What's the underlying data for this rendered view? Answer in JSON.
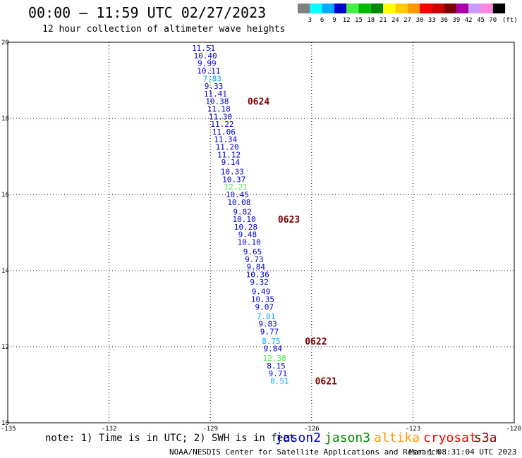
{
  "header": {
    "title": "00:00 – 11:59 UTC 02/27/2023",
    "subtitle": "12 hour collection of altimeter wave heights"
  },
  "legend": {
    "unit": "(ft)",
    "bins": [
      {
        "label": "3",
        "color": "#808080"
      },
      {
        "label": "6",
        "color": "#00ffff"
      },
      {
        "label": "9",
        "color": "#00aaff"
      },
      {
        "label": "12",
        "color": "#0000cc"
      },
      {
        "label": "15",
        "color": "#44ee44"
      },
      {
        "label": "18",
        "color": "#00bb00"
      },
      {
        "label": "21",
        "color": "#008800"
      },
      {
        "label": "24",
        "color": "#ffff00"
      },
      {
        "label": "27",
        "color": "#ffcc00"
      },
      {
        "label": "30",
        "color": "#ff9900"
      },
      {
        "label": "33",
        "color": "#ff0000"
      },
      {
        "label": "36",
        "color": "#cc0000"
      },
      {
        "label": "39",
        "color": "#7a0000"
      },
      {
        "label": "42",
        "color": "#aa00aa"
      },
      {
        "label": "45",
        "color": "#cc99ff"
      },
      {
        "label": "70",
        "color": "#ff88dd"
      },
      {
        "label": "",
        "color": "#000000"
      }
    ]
  },
  "chart_data": {
    "type": "scatter",
    "title": "00:00 – 11:59 UTC 02/27/2023",
    "subtitle": "12 hour collection of altimeter wave heights",
    "xlim": [
      -135,
      -120
    ],
    "ylim": [
      10,
      20
    ],
    "x_ticks": [
      "-135",
      "-132",
      "-129",
      "-126",
      "-123",
      "-120"
    ],
    "y_ticks": [
      "10",
      "12",
      "14",
      "16",
      "18",
      "20"
    ],
    "grid": true,
    "point_colors": {
      "blue": "#0000cc",
      "cyan": "#00aaff",
      "green": "#44ee44"
    },
    "points": [
      {
        "lon": -129.2,
        "lat": 19.85,
        "value": "11.51",
        "color": "blue"
      },
      {
        "lon": -129.15,
        "lat": 19.65,
        "value": "10.40",
        "color": "blue"
      },
      {
        "lon": -129.1,
        "lat": 19.45,
        "value": "9.99",
        "color": "blue"
      },
      {
        "lon": -129.05,
        "lat": 19.25,
        "value": "10.11",
        "color": "blue"
      },
      {
        "lon": -128.95,
        "lat": 19.05,
        "value": "7.83",
        "color": "cyan"
      },
      {
        "lon": -128.9,
        "lat": 18.85,
        "value": "9.33",
        "color": "blue"
      },
      {
        "lon": -128.85,
        "lat": 18.65,
        "value": "11.41",
        "color": "blue"
      },
      {
        "lon": -128.8,
        "lat": 18.45,
        "value": "10.38",
        "color": "blue"
      },
      {
        "lon": -128.75,
        "lat": 18.25,
        "value": "11.18",
        "color": "blue"
      },
      {
        "lon": -128.7,
        "lat": 18.05,
        "value": "11.30",
        "color": "blue"
      },
      {
        "lon": -128.65,
        "lat": 17.85,
        "value": "11.22",
        "color": "blue"
      },
      {
        "lon": -128.6,
        "lat": 17.65,
        "value": "11.06",
        "color": "blue"
      },
      {
        "lon": -128.55,
        "lat": 17.45,
        "value": "11.34",
        "color": "blue"
      },
      {
        "lon": -128.5,
        "lat": 17.25,
        "value": "11.20",
        "color": "blue"
      },
      {
        "lon": -128.45,
        "lat": 17.05,
        "value": "11.12",
        "color": "blue"
      },
      {
        "lon": -128.4,
        "lat": 16.85,
        "value": "9.14",
        "color": "blue"
      },
      {
        "lon": -128.35,
        "lat": 16.6,
        "value": "10.33",
        "color": "blue"
      },
      {
        "lon": -128.3,
        "lat": 16.4,
        "value": "10.37",
        "color": "blue"
      },
      {
        "lon": -128.25,
        "lat": 16.2,
        "value": "12.21",
        "color": "green"
      },
      {
        "lon": -128.2,
        "lat": 16.0,
        "value": "10.45",
        "color": "blue"
      },
      {
        "lon": -128.15,
        "lat": 15.8,
        "value": "10.08",
        "color": "blue"
      },
      {
        "lon": -128.05,
        "lat": 15.55,
        "value": "9.82",
        "color": "blue"
      },
      {
        "lon": -128.0,
        "lat": 15.35,
        "value": "10.10",
        "color": "blue"
      },
      {
        "lon": -127.95,
        "lat": 15.15,
        "value": "10.28",
        "color": "blue"
      },
      {
        "lon": -127.9,
        "lat": 14.95,
        "value": "9.48",
        "color": "blue"
      },
      {
        "lon": -127.85,
        "lat": 14.75,
        "value": "10.10",
        "color": "blue"
      },
      {
        "lon": -127.75,
        "lat": 14.5,
        "value": "9.65",
        "color": "blue"
      },
      {
        "lon": -127.7,
        "lat": 14.3,
        "value": "9.73",
        "color": "blue"
      },
      {
        "lon": -127.65,
        "lat": 14.1,
        "value": "9.84",
        "color": "blue"
      },
      {
        "lon": -127.6,
        "lat": 13.9,
        "value": "10.36",
        "color": "blue"
      },
      {
        "lon": -127.55,
        "lat": 13.7,
        "value": "9.32",
        "color": "blue"
      },
      {
        "lon": -127.5,
        "lat": 13.45,
        "value": "9.49",
        "color": "blue"
      },
      {
        "lon": -127.45,
        "lat": 13.25,
        "value": "10.35",
        "color": "blue"
      },
      {
        "lon": -127.4,
        "lat": 13.05,
        "value": "9.07",
        "color": "blue"
      },
      {
        "lon": -127.35,
        "lat": 12.8,
        "value": "7.01",
        "color": "cyan"
      },
      {
        "lon": -127.3,
        "lat": 12.6,
        "value": "9.83",
        "color": "blue"
      },
      {
        "lon": -127.25,
        "lat": 12.4,
        "value": "9.77",
        "color": "blue"
      },
      {
        "lon": -127.2,
        "lat": 12.15,
        "value": "8.75",
        "color": "cyan"
      },
      {
        "lon": -127.15,
        "lat": 11.95,
        "value": "9.84",
        "color": "blue"
      },
      {
        "lon": -127.1,
        "lat": 11.7,
        "value": "12.38",
        "color": "green"
      },
      {
        "lon": -127.05,
        "lat": 11.5,
        "value": "8.15",
        "color": "blue"
      },
      {
        "lon": -127.0,
        "lat": 11.3,
        "value": "9.71",
        "color": "blue"
      },
      {
        "lon": -126.95,
        "lat": 11.1,
        "value": "8.51",
        "color": "cyan"
      }
    ],
    "time_annotations": [
      {
        "lon": -127.9,
        "lat": 18.45,
        "label": "0624"
      },
      {
        "lon": -127.0,
        "lat": 15.35,
        "label": "0623"
      },
      {
        "lon": -126.2,
        "lat": 12.15,
        "label": "0622"
      },
      {
        "lon": -125.9,
        "lat": 11.1,
        "label": "0621"
      }
    ]
  },
  "footer": {
    "note": "note: 1) Time is in UTC; 2) SWH is in feet",
    "satellites": [
      {
        "label": "jason2",
        "color": "#0000cc"
      },
      {
        "label": "jason3",
        "color": "#008800"
      },
      {
        "label": "altika",
        "color": "#ff9900"
      },
      {
        "label": "cryosat",
        "color": "#ff0000"
      },
      {
        "label": "s3a",
        "color": "#7a0000"
      }
    ],
    "credit": "NOAA/NESDIS Center for Satellite Applications and Research",
    "timestamp": "Mar  1 08:31:04 UTC 2023"
  }
}
